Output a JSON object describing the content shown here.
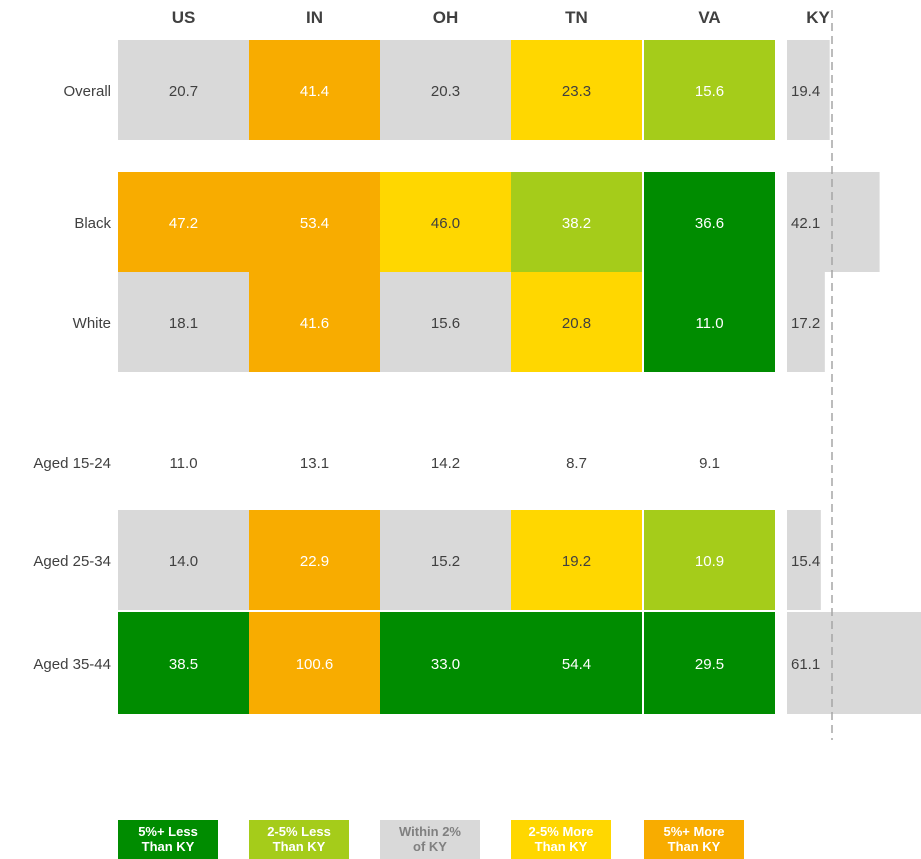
{
  "chart_data": {
    "type": "table",
    "columns": [
      "US",
      "IN",
      "OH",
      "TN",
      "VA",
      "KY"
    ],
    "rows": [
      {
        "label": "Overall",
        "values": [
          20.7,
          41.4,
          20.3,
          23.3,
          15.6,
          19.4
        ],
        "categories": [
          "within",
          "more5",
          "within",
          "more2",
          "less2"
        ]
      },
      {
        "label": "Black",
        "values": [
          47.2,
          53.4,
          46.0,
          38.2,
          36.6,
          42.1
        ],
        "categories": [
          "more5",
          "more5",
          "more2",
          "less2",
          "less5"
        ]
      },
      {
        "label": "White",
        "values": [
          18.1,
          41.6,
          15.6,
          20.8,
          11.0,
          17.2
        ],
        "categories": [
          "within",
          "more5",
          "within",
          "more2",
          "less5"
        ]
      },
      {
        "label": "Aged 15-24",
        "values": [
          11.0,
          13.1,
          14.2,
          8.7,
          9.1,
          null
        ],
        "categories": [
          null,
          null,
          null,
          null,
          null
        ]
      },
      {
        "label": "Aged 25-34",
        "values": [
          14.0,
          22.9,
          15.2,
          19.2,
          10.9,
          15.4
        ],
        "categories": [
          "within",
          "more5",
          "within",
          "more2",
          "less2"
        ]
      },
      {
        "label": "Aged 35-44",
        "values": [
          38.5,
          100.6,
          33.0,
          54.4,
          29.5,
          61.1
        ],
        "categories": [
          "less5",
          "more5",
          "less5",
          "less5",
          "less5"
        ]
      }
    ],
    "reference_column": "KY",
    "legend": [
      {
        "key": "less5",
        "label": "5%+ Less\nThan KY",
        "color": "#008C00"
      },
      {
        "key": "less2",
        "label": "2-5% Less\nThan KY",
        "color": "#A5CC1A"
      },
      {
        "key": "within",
        "label": "Within 2%\nof KY",
        "color": "#D9D9D9"
      },
      {
        "key": "more2",
        "label": "2-5% More\nThan KY",
        "color": "#FFD700"
      },
      {
        "key": "more5",
        "label": "5%+ More\nThan KY",
        "color": "#F8AC00"
      }
    ],
    "ky_bar_color": "#D9D9D9",
    "reference_line_color": "#A6A6A6"
  }
}
